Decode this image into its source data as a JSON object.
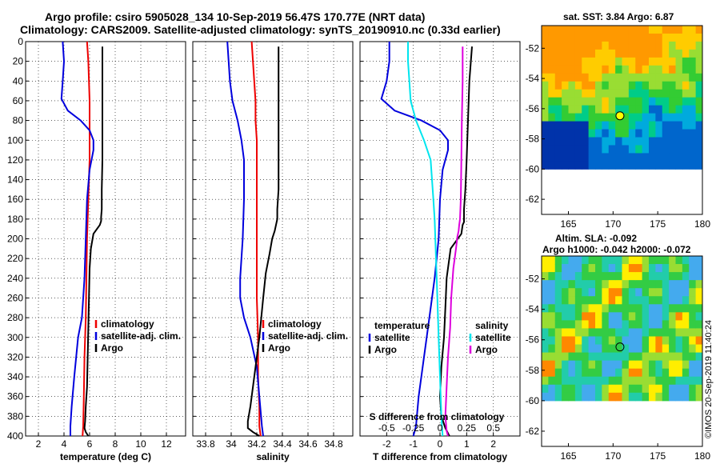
{
  "header": {
    "title_line1": "Argo profile: csiro 5905028_134 10-Sep-2019 56.47S 170.77E (NRT data)",
    "title_line2": "Climatology: CARS2009. Satellite-adjusted climatology: synTS_20190910.nc (0.33d earlier)"
  },
  "credit": "©IMOS 20-Sep-2019 11:40:24",
  "colors": {
    "climatology": "#ee0000",
    "satellite": "#0000dd",
    "argo": "#000000",
    "cyan": "#00e5ee",
    "magenta": "#dd00dd",
    "grid": "#000000"
  },
  "chart_data": [
    {
      "id": "temperature",
      "type": "line",
      "xlabel": "temperature (deg C)",
      "ylabel": "",
      "xlim": [
        1,
        13.5
      ],
      "ylim": [
        400,
        0
      ],
      "xticks": [
        2,
        4,
        6,
        8,
        10,
        12
      ],
      "xtick_labels": [
        "2",
        "4",
        "6",
        "8",
        "10",
        "12"
      ],
      "yticks": [
        0,
        20,
        40,
        60,
        80,
        100,
        120,
        140,
        160,
        180,
        200,
        220,
        240,
        260,
        280,
        300,
        320,
        340,
        360,
        380,
        400
      ],
      "ytick_labels": [
        "0",
        "20",
        "40",
        "60",
        "80",
        "100",
        "120",
        "140",
        "160",
        "180",
        "200",
        "220",
        "240",
        "260",
        "280",
        "300",
        "320",
        "340",
        "360",
        "380",
        "400"
      ],
      "legend": [
        "climatology",
        "satellite-adj. clim.",
        "Argo"
      ],
      "series": [
        {
          "name": "climatology",
          "color_key": "climatology",
          "x": [
            5.8,
            5.9,
            5.95,
            6.0,
            6.0,
            6.0,
            6.0,
            5.95,
            5.9,
            5.85,
            5.8,
            5.75,
            5.7,
            5.6,
            5.55,
            5.5,
            5.45
          ],
          "y": [
            0,
            20,
            40,
            60,
            80,
            100,
            120,
            140,
            160,
            180,
            200,
            240,
            280,
            320,
            360,
            390,
            400
          ]
        },
        {
          "name": "satellite-adj. clim.",
          "color_key": "satellite",
          "x": [
            3.9,
            4.0,
            3.9,
            3.8,
            4.3,
            5.3,
            6.0,
            6.3,
            6.3,
            6.0,
            5.8,
            5.7,
            5.6,
            5.4,
            5.1,
            4.8,
            4.6,
            4.5,
            4.5
          ],
          "y": [
            0,
            20,
            40,
            58,
            70,
            80,
            90,
            100,
            110,
            130,
            160,
            200,
            240,
            280,
            300,
            340,
            370,
            390,
            400
          ]
        },
        {
          "name": "Argo",
          "color_key": "argo",
          "x": [
            7.0,
            7.0,
            7.0,
            7.0,
            6.95,
            6.95,
            6.9,
            6.9,
            6.8,
            6.3,
            6.1,
            6.0,
            5.95,
            5.9,
            5.85,
            5.8,
            5.7,
            5.65,
            5.6,
            5.7,
            5.9
          ],
          "y": [
            5,
            40,
            80,
            120,
            150,
            170,
            178,
            182,
            186,
            195,
            210,
            230,
            260,
            290,
            320,
            350,
            370,
            385,
            392,
            396,
            400
          ]
        }
      ]
    },
    {
      "id": "salinity",
      "type": "line",
      "xlabel": "salinity",
      "ylabel": "",
      "xlim": [
        33.7,
        34.95
      ],
      "ylim": [
        400,
        0
      ],
      "xticks": [
        33.8,
        34.0,
        34.2,
        34.4,
        34.6,
        34.8
      ],
      "xtick_labels": [
        "33.8",
        "34",
        "34.2",
        "34.4",
        "34.6",
        "34.8"
      ],
      "legend": [
        "climatology",
        "satellite-adj. clim.",
        "Argo"
      ],
      "series": [
        {
          "name": "climatology",
          "color_key": "climatology",
          "x": [
            34.16,
            34.17,
            34.18,
            34.19,
            34.19,
            34.2,
            34.2,
            34.2,
            34.2,
            34.2,
            34.21,
            34.21,
            34.22,
            34.22,
            34.23
          ],
          "y": [
            0,
            20,
            40,
            60,
            80,
            100,
            140,
            180,
            220,
            260,
            300,
            340,
            370,
            390,
            400
          ]
        },
        {
          "name": "satellite-adj. clim.",
          "color_key": "satellite",
          "x": [
            33.97,
            33.98,
            33.99,
            34.01,
            34.05,
            34.08,
            34.1,
            34.1,
            34.09,
            34.08,
            34.07,
            34.07,
            34.1,
            34.15,
            34.2,
            34.22,
            34.24,
            34.25
          ],
          "y": [
            0,
            20,
            40,
            60,
            80,
            100,
            120,
            160,
            200,
            220,
            240,
            260,
            280,
            300,
            330,
            360,
            390,
            400
          ]
        },
        {
          "name": "Argo",
          "color_key": "argo",
          "x": [
            34.37,
            34.37,
            34.37,
            34.37,
            34.36,
            34.36,
            34.35,
            34.34,
            34.32,
            34.3,
            34.27,
            34.25,
            34.22,
            34.18,
            34.15,
            34.13,
            34.13,
            34.17,
            34.22
          ],
          "y": [
            5,
            50,
            100,
            150,
            170,
            180,
            186,
            192,
            200,
            215,
            235,
            260,
            300,
            340,
            370,
            385,
            392,
            396,
            400
          ]
        }
      ]
    },
    {
      "id": "difference",
      "type": "line",
      "xlabel": "T difference from climatology",
      "xlabel_top": "S difference from climatology",
      "xlim": [
        -3,
        3
      ],
      "ylim": [
        400,
        0
      ],
      "xticks": [
        -2,
        -1,
        0,
        1,
        2
      ],
      "xtick_labels": [
        "-2",
        "-1",
        "0",
        "1",
        "2"
      ],
      "xticks_s": [
        -2.0,
        -1.0,
        0.0,
        1.0,
        2.0
      ],
      "xtick_labels_s": [
        "-0.5",
        "-0.25",
        "0",
        "0.25",
        "0.5"
      ],
      "legend_left_title": "temperature",
      "legend_left": [
        "satellite",
        "Argo"
      ],
      "legend_right_title": "salinity",
      "legend_right": [
        "satellite",
        "Argo"
      ],
      "series": [
        {
          "name": "T satellite",
          "color_key": "satellite",
          "x": [
            -1.9,
            -1.9,
            -2.0,
            -2.2,
            -1.7,
            -0.7,
            0.0,
            0.3,
            0.3,
            0.1,
            0.0,
            -0.05,
            -0.2,
            -0.4,
            -0.6,
            -0.8,
            -0.9,
            -1.0
          ],
          "y": [
            0,
            20,
            40,
            58,
            70,
            80,
            90,
            100,
            110,
            130,
            160,
            200,
            240,
            280,
            320,
            360,
            390,
            400
          ]
        },
        {
          "name": "T Argo",
          "color_key": "argo",
          "x": [
            1.2,
            1.1,
            1.05,
            1.0,
            0.95,
            0.9,
            0.9,
            0.9,
            0.85,
            0.8,
            0.4,
            0.25,
            0.2,
            0.15,
            0.05,
            0.0,
            0.05,
            0.2,
            0.35
          ],
          "y": [
            5,
            40,
            80,
            120,
            150,
            170,
            180,
            183,
            186,
            195,
            210,
            240,
            270,
            300,
            330,
            360,
            380,
            392,
            400
          ]
        },
        {
          "name": "S satellite",
          "color_key": "cyan",
          "x": [
            -1.2,
            -1.2,
            -1.15,
            -1.1,
            -0.9,
            -0.6,
            -0.35,
            -0.3,
            -0.25,
            -0.2,
            -0.15,
            -0.1,
            -0.05,
            0.0,
            0.05,
            0.1
          ],
          "y": [
            0,
            20,
            40,
            60,
            80,
            100,
            120,
            140,
            160,
            180,
            220,
            260,
            300,
            340,
            380,
            400
          ]
        },
        {
          "name": "S Argo",
          "color_key": "magenta",
          "x": [
            0.85,
            0.85,
            0.82,
            0.8,
            0.78,
            0.75,
            0.72,
            0.7,
            0.65,
            0.6,
            0.5,
            0.42,
            0.38,
            0.3,
            0.25,
            0.2,
            0.25,
            0.3
          ],
          "y": [
            5,
            40,
            80,
            120,
            160,
            180,
            186,
            192,
            198,
            210,
            230,
            260,
            290,
            320,
            350,
            380,
            395,
            400
          ]
        }
      ]
    }
  ],
  "maps": [
    {
      "id": "sst-map",
      "title": "sat. SST: 3.84 Argo: 6.87",
      "xlim": [
        162,
        180
      ],
      "ylim": [
        -63,
        -50.5
      ],
      "xticks": [
        165,
        170,
        175,
        180
      ],
      "xtick_labels": [
        "165",
        "170",
        "175",
        "180"
      ],
      "yticks": [
        -52,
        -54,
        -56,
        -58,
        -60,
        -62
      ],
      "ytick_labels": [
        "-52",
        "-54",
        "-56",
        "-58",
        "-60",
        "-62"
      ],
      "profile_lon": 170.77,
      "profile_lat": -56.47,
      "marker_color": "#ffff00",
      "data_bottom_lat": -60.0
    },
    {
      "id": "sla-map",
      "title": "Altim. SLA: -0.092",
      "title2": "Argo h1000: -0.042 h2000: -0.072",
      "xlim": [
        162,
        180
      ],
      "ylim": [
        -63,
        -50.5
      ],
      "xticks": [
        165,
        170,
        175,
        180
      ],
      "xtick_labels": [
        "165",
        "170",
        "175",
        "180"
      ],
      "yticks": [
        -52,
        -54,
        -56,
        -58,
        -60,
        -62
      ],
      "ytick_labels": [
        "-52",
        "-54",
        "-56",
        "-58",
        "-60",
        "-62"
      ],
      "profile_lon": 170.77,
      "profile_lat": -56.47,
      "marker_color": "none",
      "data_bottom_lat": -60.0
    }
  ]
}
